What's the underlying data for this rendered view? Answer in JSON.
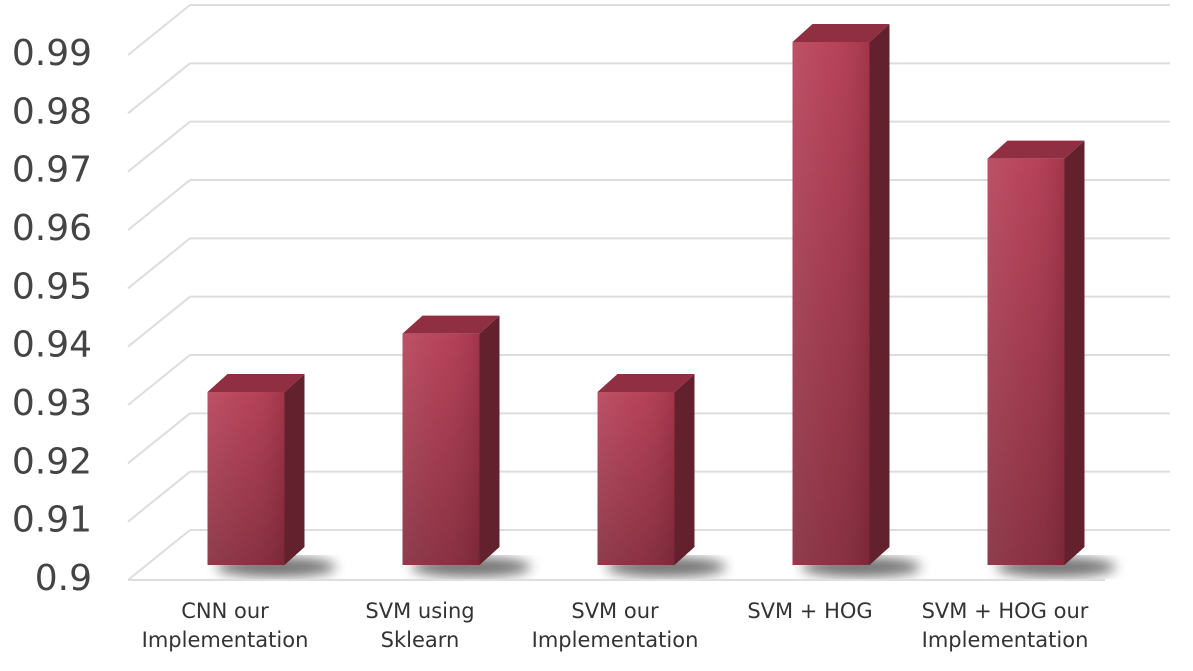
{
  "chart_data": {
    "type": "bar",
    "categories": [
      "CNN our Implementation",
      "SVM using Sklearn",
      "SVM our Implementation",
      "SVM + HOG",
      "SVM + HOG our Implementation"
    ],
    "values": [
      0.93,
      0.94,
      0.93,
      0.99,
      0.97
    ],
    "color": "#b43a52",
    "ylim": [
      0.9,
      0.99
    ],
    "yticks": [
      0.9,
      0.91,
      0.92,
      0.93,
      0.94,
      0.95,
      0.96,
      0.97,
      0.98,
      0.99
    ],
    "grid": true
  }
}
